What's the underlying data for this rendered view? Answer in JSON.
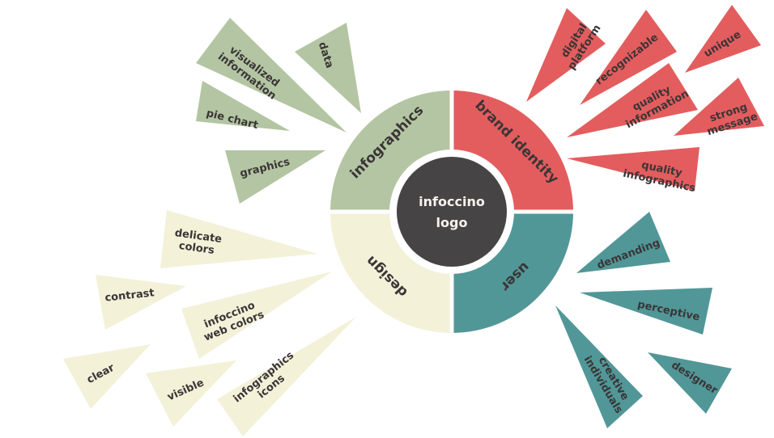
{
  "center": {
    "lines": [
      "infoccino",
      "logo"
    ]
  },
  "colors": {
    "infographics": "#b3c5a2",
    "brand": "#e35d5e",
    "user": "#529798",
    "design": "#f3f1d8",
    "center": "#474445",
    "text": "#3a3536",
    "light_text": "#f7f3ee"
  },
  "quadrants": [
    {
      "id": "infographics",
      "label": "infographics"
    },
    {
      "id": "brand",
      "label": "brand identity"
    },
    {
      "id": "user",
      "label": "user"
    },
    {
      "id": "design",
      "label": "design"
    }
  ],
  "spikes": {
    "infographics": [
      {
        "lines": [
          "visualized",
          "information"
        ]
      },
      {
        "lines": [
          "data"
        ]
      },
      {
        "lines": [
          "pie chart"
        ]
      },
      {
        "lines": [
          "graphics"
        ]
      }
    ],
    "brand": [
      {
        "lines": [
          "digital",
          "platform"
        ]
      },
      {
        "lines": [
          "recognizable"
        ]
      },
      {
        "lines": [
          "unique"
        ]
      },
      {
        "lines": [
          "quality",
          "information"
        ]
      },
      {
        "lines": [
          "strong",
          "message"
        ]
      },
      {
        "lines": [
          "quality",
          "infographics"
        ]
      }
    ],
    "user": [
      {
        "lines": [
          "demanding"
        ]
      },
      {
        "lines": [
          "perceptive"
        ]
      },
      {
        "lines": [
          "creative",
          "individuals"
        ]
      },
      {
        "lines": [
          "designer"
        ]
      }
    ],
    "design": [
      {
        "lines": [
          "delicate",
          "colors"
        ]
      },
      {
        "lines": [
          "contrast"
        ]
      },
      {
        "lines": [
          "infoccino",
          "web colors"
        ]
      },
      {
        "lines": [
          "clear"
        ]
      },
      {
        "lines": [
          "visible"
        ]
      },
      {
        "lines": [
          "infographics",
          "icons"
        ]
      }
    ]
  }
}
